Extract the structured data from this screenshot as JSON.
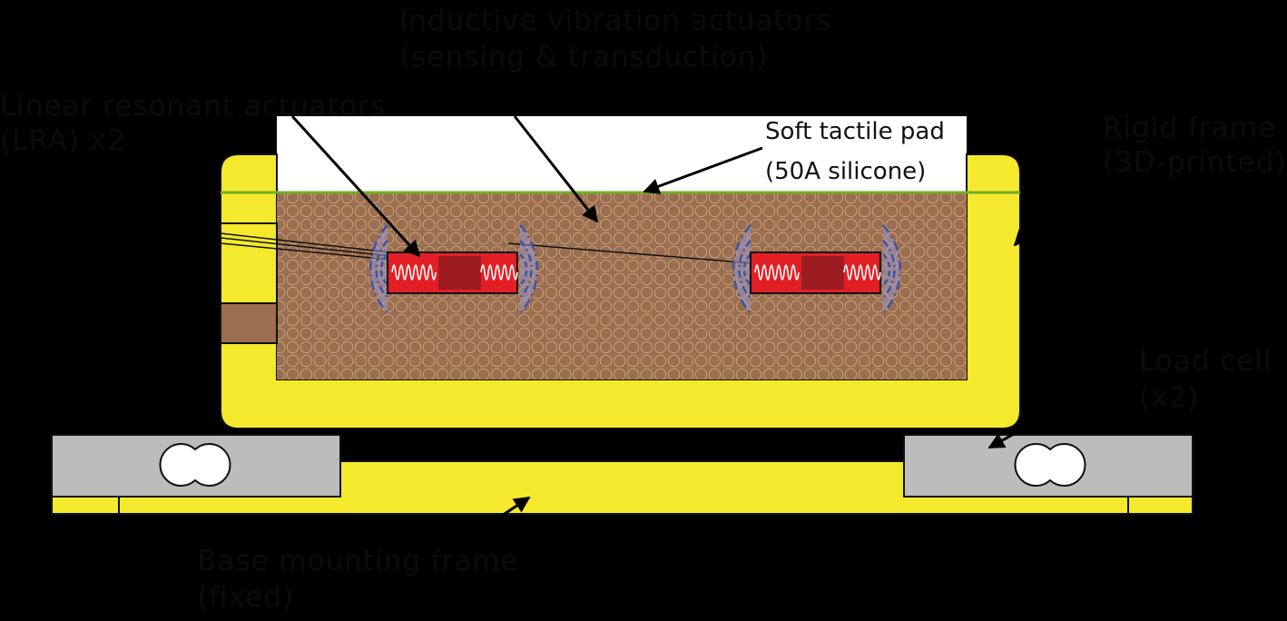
{
  "labels": {
    "soft_pad_line1": "Soft tactile pad",
    "soft_pad_line2": "(50A silicone)",
    "top_label_line1": "Inductive vibration actuators",
    "top_label_line2": "(sensing & transduction)",
    "left_label_line1": "Linear resonant actuators",
    "left_label_line2": "(LRA) x2",
    "right_label_line1": "Rigid frame",
    "right_label_line2": "(3D-printed)",
    "load_cell_line1": "Load cell",
    "load_cell_line2": "(x2)",
    "base_label_line1": "Base mounting frame",
    "base_label_line2": "(fixed)"
  },
  "colors": {
    "background": "#000000",
    "frame_yellow": "#f5e92d",
    "frame_outline": "#111111",
    "pad_brown": "#9a6e4e",
    "pad_circle": "#c7a17f",
    "pad_top_line": "#6fb12a",
    "actuator_red": "#e31f26",
    "actuator_dark_red": "#9c1c22",
    "coil_white": "#ffffff",
    "wave_blue": "#3b54a4",
    "wave_fill": "#9d96c8",
    "load_cell_gray": "#bcbcbc",
    "hole_white": "#ffffff",
    "label_dark_text": "#0c0c0c"
  },
  "icons": [
    "actuator-coil-icon",
    "vibration-wave-icon",
    "load-cell-hole-icon",
    "arrow-icon"
  ]
}
